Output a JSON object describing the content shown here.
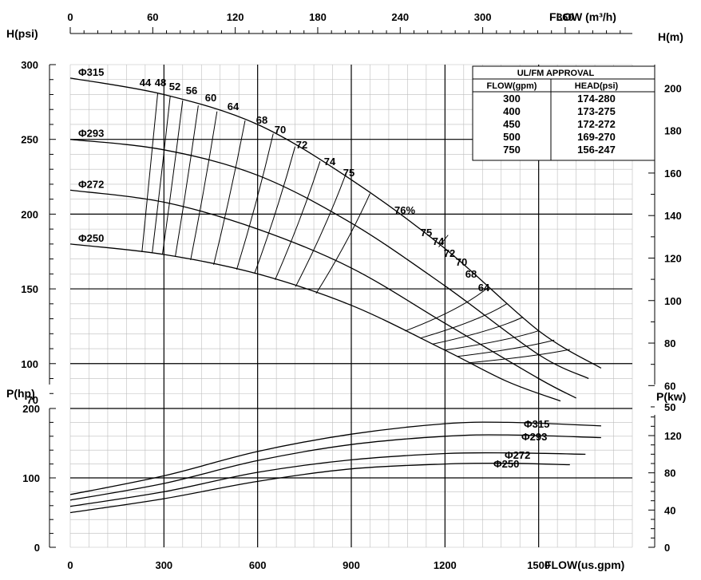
{
  "chart_data": [
    {
      "type": "line",
      "title": "",
      "x_top_label": "FLOW (m³/h)",
      "x_top_ticks": [
        0,
        60,
        120,
        180,
        240,
        300,
        360
      ],
      "ylabel_left": "H(psi)",
      "ylabel_right": "H(m)",
      "yticks_left": [
        70,
        100,
        150,
        200,
        250,
        300
      ],
      "yticks_right": [
        50,
        60,
        80,
        100,
        120,
        140,
        160,
        180,
        200
      ],
      "xlim": [
        0,
        1800
      ],
      "ylim": [
        70,
        300
      ],
      "grid": true,
      "series": [
        {
          "name": "Φ315",
          "x": [
            0,
            300,
            600,
            900,
            1200,
            1500,
            1700
          ],
          "y": [
            291,
            280,
            260,
            223,
            177,
            122,
            97
          ]
        },
        {
          "name": "Φ293",
          "x": [
            0,
            300,
            600,
            900,
            1200,
            1500,
            1660
          ],
          "y": [
            250,
            243,
            226,
            194,
            152,
            106,
            90
          ]
        },
        {
          "name": "Φ272",
          "x": [
            0,
            300,
            600,
            900,
            1200,
            1500,
            1620
          ],
          "y": [
            216,
            208,
            190,
            164,
            127,
            90,
            77
          ]
        },
        {
          "name": "Φ250",
          "x": [
            0,
            300,
            600,
            900,
            1200,
            1400,
            1570
          ],
          "y": [
            180,
            173,
            160,
            139,
            109,
            88,
            75
          ]
        }
      ],
      "efficiency_labels": [
        "44",
        "48",
        "52",
        "56",
        "60",
        "64",
        "68",
        "70",
        "72",
        "74",
        "75",
        "76%",
        "75",
        "74",
        "72",
        "70",
        "68",
        "64"
      ],
      "approval_table": {
        "title": "UL/FM APPROVAL",
        "headers": [
          "FLOW(gpm)",
          "HEAD(psi)"
        ],
        "rows": [
          [
            "300",
            "174-280"
          ],
          [
            "400",
            "173-275"
          ],
          [
            "450",
            "172-272"
          ],
          [
            "500",
            "169-270"
          ],
          [
            "750",
            "156-247"
          ]
        ]
      }
    },
    {
      "type": "line",
      "title": "",
      "xlabel": "FLOW(us.gpm)",
      "xticks": [
        0,
        300,
        600,
        900,
        1200,
        1500
      ],
      "ylabel_left": "P(hp)",
      "ylabel_right": "P(kw)",
      "yticks_left": [
        0,
        100,
        200
      ],
      "yticks_right": [
        0,
        40,
        80,
        120
      ],
      "xlim": [
        0,
        1800
      ],
      "ylim": [
        0,
        200
      ],
      "grid": true,
      "series": [
        {
          "name": "Φ315",
          "x": [
            0,
            300,
            600,
            900,
            1200,
            1400,
            1700
          ],
          "y": [
            76,
            103,
            138,
            163,
            178,
            180,
            175
          ]
        },
        {
          "name": "Φ293",
          "x": [
            0,
            300,
            600,
            900,
            1200,
            1400,
            1700
          ],
          "y": [
            68,
            92,
            125,
            148,
            160,
            162,
            158
          ]
        },
        {
          "name": "Φ272",
          "x": [
            0,
            300,
            600,
            900,
            1200,
            1400,
            1650
          ],
          "y": [
            59,
            80,
            108,
            126,
            135,
            136,
            134
          ]
        },
        {
          "name": "Φ250",
          "x": [
            0,
            300,
            600,
            900,
            1200,
            1400,
            1600
          ],
          "y": [
            50,
            70,
            95,
            113,
            120,
            121,
            119
          ]
        }
      ]
    }
  ]
}
